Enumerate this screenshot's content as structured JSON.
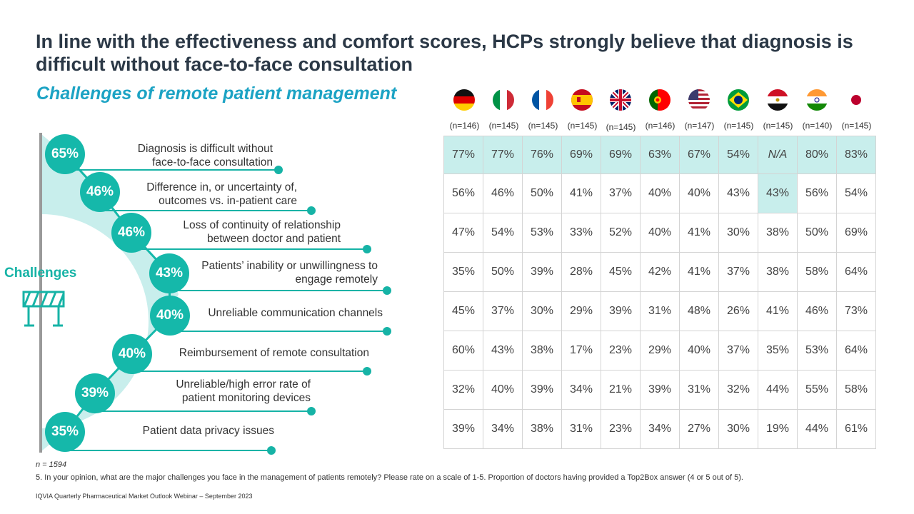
{
  "title": "In line with the effectiveness and comfort scores, HCPs strongly believe that diagnosis is difficult without face-to-face consultation",
  "subtitle": "Challenges of remote patient management",
  "challenges_label": "Challenges",
  "challenges": [
    {
      "value": "65%",
      "line1": "Diagnosis is difficult without",
      "line2": "face-to-face consultation"
    },
    {
      "value": "46%",
      "line1": "Difference in, or uncertainty of,",
      "line2": "outcomes vs. in-patient care"
    },
    {
      "value": "46%",
      "line1": "Loss of continuity  of relationship",
      "line2": "between doctor and patient"
    },
    {
      "value": "43%",
      "line1": "Patients’ inability or unwillingness  to",
      "line2": "engage remotely"
    },
    {
      "value": "40%",
      "line1": "Unreliable communication channels",
      "line2": ""
    },
    {
      "value": "40%",
      "line1": "Reimbursement  of remote consultation",
      "line2": ""
    },
    {
      "value": "39%",
      "line1": "Unreliable/high  error rate of",
      "line2": "patient monitoring devices"
    },
    {
      "value": "35%",
      "line1": "Patient data privacy issues",
      "line2": ""
    }
  ],
  "countries": [
    {
      "flag": "germany-flag",
      "n": "(n=146)"
    },
    {
      "flag": "italy-flag",
      "n": "(n=145)"
    },
    {
      "flag": "france-flag",
      "n": "(n=145)"
    },
    {
      "flag": "spain-flag",
      "n": "(n=145)"
    },
    {
      "flag": "uk-flag",
      "n": "(n=145)"
    },
    {
      "flag": "portugal-flag",
      "n": "(n=146)"
    },
    {
      "flag": "usa-flag",
      "n": "(n=147)"
    },
    {
      "flag": "brazil-flag",
      "n": "(n=145)"
    },
    {
      "flag": "egypt-flag",
      "n": "(n=145)"
    },
    {
      "flag": "india-flag",
      "n": "(n=140)"
    },
    {
      "flag": "japan-flag",
      "n": "(n=145)"
    }
  ],
  "table": {
    "rows": [
      [
        "77%",
        "77%",
        "76%",
        "69%",
        "69%",
        "63%",
        "67%",
        "54%",
        "N/A",
        "80%",
        "83%"
      ],
      [
        "56%",
        "46%",
        "50%",
        "41%",
        "37%",
        "40%",
        "40%",
        "43%",
        "43%",
        "56%",
        "54%"
      ],
      [
        "47%",
        "54%",
        "53%",
        "33%",
        "52%",
        "40%",
        "41%",
        "30%",
        "38%",
        "50%",
        "69%"
      ],
      [
        "35%",
        "50%",
        "39%",
        "28%",
        "45%",
        "42%",
        "41%",
        "37%",
        "38%",
        "58%",
        "64%"
      ],
      [
        "45%",
        "37%",
        "30%",
        "29%",
        "39%",
        "31%",
        "48%",
        "26%",
        "41%",
        "46%",
        "73%"
      ],
      [
        "60%",
        "43%",
        "38%",
        "17%",
        "23%",
        "29%",
        "40%",
        "37%",
        "35%",
        "53%",
        "64%"
      ],
      [
        "32%",
        "40%",
        "39%",
        "34%",
        "21%",
        "39%",
        "31%",
        "32%",
        "44%",
        "55%",
        "58%"
      ],
      [
        "39%",
        "34%",
        "38%",
        "31%",
        "23%",
        "34%",
        "27%",
        "30%",
        "19%",
        "44%",
        "61%"
      ]
    ],
    "highlight_color": "#c8eeec"
  },
  "accent_color": "#15b8aa",
  "n_total": "n = 1594",
  "question": "5. In your opinion, what are the major challenges you face in the management of patients remotely? Please rate on a scale of 1-5. Proportion of doctors having provided a Top2Box answer (4 or 5 out of 5).",
  "source": "IQVIA Quarterly Pharmaceutical Market Outlook Webinar – September 2023",
  "chart_data": {
    "type": "table",
    "title": "Challenges of remote patient management",
    "overall": [
      65,
      46,
      46,
      43,
      40,
      40,
      39,
      35
    ],
    "categories": [
      "Diagnosis is difficult without face-to-face consultation",
      "Difference in, or uncertainty of, outcomes vs. in-patient care",
      "Loss of continuity  of relationship between doctor and patient",
      "Patients’ inability or unwillingness  to engage remotely",
      "Unreliable communication channels",
      "Reimbursement  of remote consultation",
      "Unreliable/high  error rate of patient monitoring devices",
      "Patient data privacy issues"
    ]
  }
}
